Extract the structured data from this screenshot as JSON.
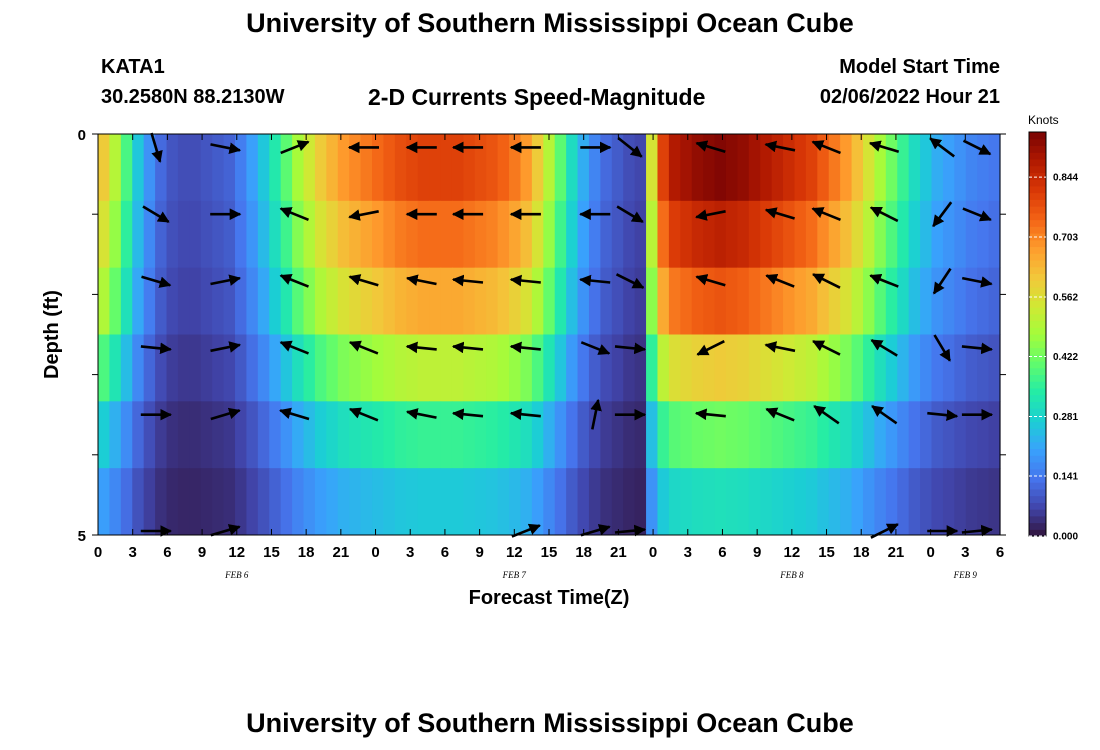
{
  "header": {
    "title": "University of Southern Mississippi Ocean Cube",
    "station": "KATA1",
    "coords": "30.2580N  88.2130W",
    "subtitle": "2-D Currents Speed-Magnitude",
    "start_label": "Model Start Time",
    "start_value": "02/06/2022 Hour 21"
  },
  "footer": {
    "title": "University of Southern Mississippi Ocean Cube"
  },
  "chart_data": {
    "type": "heatmap",
    "title": "2-D Currents Speed-Magnitude",
    "xlabel": "Forecast Time(Z)",
    "ylabel": "Depth (ft)",
    "x_tick_labels": [
      "0",
      "3",
      "6",
      "9",
      "12",
      "15",
      "18",
      "21",
      "0",
      "3",
      "6",
      "9",
      "12",
      "15",
      "18",
      "21",
      "0",
      "3",
      "6",
      "9",
      "12",
      "15",
      "18",
      "21",
      "0",
      "3",
      "6"
    ],
    "date_labels": [
      {
        "label": "FEB 6",
        "tick_index": 4
      },
      {
        "label": "FEB 7",
        "tick_index": 12
      },
      {
        "label": "FEB 8",
        "tick_index": 20
      },
      {
        "label": "FEB 9",
        "tick_index": 25
      }
    ],
    "y_tick_labels": [
      "0",
      "",
      "",
      "",
      "",
      "5"
    ],
    "ylim": [
      0,
      5
    ],
    "colorbar": {
      "label": "Knots",
      "ticks": [
        "0.000",
        "0.141",
        "0.281",
        "0.422",
        "0.562",
        "0.703",
        "0.844"
      ],
      "tick_values": [
        0.0,
        0.141,
        0.281,
        0.422,
        0.562,
        0.703,
        0.844
      ],
      "range": [
        0,
        0.95
      ],
      "colors": [
        "#30123b",
        "#4145ab",
        "#4675ed",
        "#39a2fc",
        "#1bcfd4",
        "#24eca6",
        "#61fc6c",
        "#a4fc3b",
        "#d1e834",
        "#f3c63a",
        "#fe9b2d",
        "#f36315",
        "#d93806",
        "#b11901",
        "#7a0403"
      ]
    },
    "depth_layers": [
      "0",
      "1",
      "2",
      "3",
      "4",
      "5"
    ],
    "col_times_hours": [
      0,
      1,
      2,
      3,
      4,
      5,
      6,
      7,
      8,
      9,
      10,
      11,
      12,
      13,
      14,
      15,
      16,
      17,
      18,
      19,
      20,
      21,
      22,
      23,
      24,
      25,
      26,
      27,
      28,
      29,
      30,
      31,
      32,
      33,
      34,
      35,
      36,
      37,
      38,
      39,
      40,
      41,
      42,
      43,
      44,
      45,
      46,
      47,
      48,
      49,
      50,
      51,
      52,
      53,
      54,
      55,
      56,
      57,
      58,
      59,
      60,
      61,
      62,
      63,
      64,
      65,
      66,
      67,
      68,
      69,
      70,
      71,
      72,
      73,
      74,
      75,
      76,
      77,
      78
    ],
    "speed_profile": [
      0.6,
      0.5,
      0.38,
      0.26,
      0.18,
      0.12,
      0.09,
      0.08,
      0.08,
      0.09,
      0.1,
      0.11,
      0.15,
      0.2,
      0.26,
      0.33,
      0.4,
      0.48,
      0.54,
      0.6,
      0.64,
      0.68,
      0.7,
      0.72,
      0.74,
      0.76,
      0.78,
      0.79,
      0.8,
      0.8,
      0.8,
      0.8,
      0.79,
      0.78,
      0.77,
      0.75,
      0.72,
      0.68,
      0.6,
      0.5,
      0.4,
      0.3,
      0.22,
      0.16,
      0.12,
      0.1,
      0.08,
      0.07,
      0.55,
      0.8,
      0.88,
      0.9,
      0.92,
      0.93,
      0.94,
      0.93,
      0.92,
      0.9,
      0.88,
      0.86,
      0.84,
      0.82,
      0.8,
      0.76,
      0.72,
      0.68,
      0.62,
      0.55,
      0.48,
      0.42,
      0.36,
      0.3,
      0.26,
      0.22,
      0.2,
      0.18,
      0.16,
      0.15,
      0.14
    ],
    "layer_factor": [
      1.0,
      0.92,
      0.82,
      0.64,
      0.45,
      0.33
    ],
    "arrows": [
      {
        "t": 5,
        "layer": 0,
        "dx": 0.3,
        "dy": 1
      },
      {
        "t": 11,
        "layer": 0,
        "dx": 1,
        "dy": 0.2
      },
      {
        "t": 17,
        "layer": 0,
        "dx": 1,
        "dy": -0.4
      },
      {
        "t": 23,
        "layer": 0,
        "dx": -1,
        "dy": 0
      },
      {
        "t": 28,
        "layer": 0,
        "dx": -1,
        "dy": 0
      },
      {
        "t": 32,
        "layer": 0,
        "dx": -1,
        "dy": 0
      },
      {
        "t": 37,
        "layer": 0,
        "dx": -1,
        "dy": 0
      },
      {
        "t": 43,
        "layer": 0,
        "dx": 1,
        "dy": 0
      },
      {
        "t": 46,
        "layer": 0,
        "dx": 1,
        "dy": 0.8
      },
      {
        "t": 53,
        "layer": 0,
        "dx": -1,
        "dy": -0.3
      },
      {
        "t": 59,
        "layer": 0,
        "dx": -1,
        "dy": -0.2
      },
      {
        "t": 63,
        "layer": 0,
        "dx": -1,
        "dy": -0.4
      },
      {
        "t": 68,
        "layer": 0,
        "dx": -1,
        "dy": -0.3
      },
      {
        "t": 73,
        "layer": 0,
        "dx": -0.8,
        "dy": -0.6
      },
      {
        "t": 76,
        "layer": 0,
        "dx": 1,
        "dy": 0.5
      },
      {
        "t": 5,
        "layer": 1,
        "dx": 1,
        "dy": 0.6
      },
      {
        "t": 11,
        "layer": 1,
        "dx": 1,
        "dy": 0
      },
      {
        "t": 17,
        "layer": 1,
        "dx": -1,
        "dy": -0.4
      },
      {
        "t": 23,
        "layer": 1,
        "dx": -1,
        "dy": 0.2
      },
      {
        "t": 28,
        "layer": 1,
        "dx": -1,
        "dy": 0
      },
      {
        "t": 32,
        "layer": 1,
        "dx": -1,
        "dy": 0
      },
      {
        "t": 37,
        "layer": 1,
        "dx": -1,
        "dy": 0
      },
      {
        "t": 43,
        "layer": 1,
        "dx": -1,
        "dy": 0
      },
      {
        "t": 46,
        "layer": 1,
        "dx": 1,
        "dy": 0.6
      },
      {
        "t": 53,
        "layer": 1,
        "dx": -1,
        "dy": 0.2
      },
      {
        "t": 59,
        "layer": 1,
        "dx": -1,
        "dy": -0.3
      },
      {
        "t": 63,
        "layer": 1,
        "dx": -1,
        "dy": -0.4
      },
      {
        "t": 68,
        "layer": 1,
        "dx": -1,
        "dy": -0.5
      },
      {
        "t": 73,
        "layer": 1,
        "dx": -0.6,
        "dy": 0.8
      },
      {
        "t": 76,
        "layer": 1,
        "dx": 1,
        "dy": 0.4
      },
      {
        "t": 5,
        "layer": 2,
        "dx": 1,
        "dy": 0.3
      },
      {
        "t": 11,
        "layer": 2,
        "dx": 1,
        "dy": -0.2
      },
      {
        "t": 17,
        "layer": 2,
        "dx": -1,
        "dy": -0.4
      },
      {
        "t": 23,
        "layer": 2,
        "dx": -1,
        "dy": -0.3
      },
      {
        "t": 28,
        "layer": 2,
        "dx": -1,
        "dy": -0.2
      },
      {
        "t": 32,
        "layer": 2,
        "dx": -1,
        "dy": -0.1
      },
      {
        "t": 37,
        "layer": 2,
        "dx": -1,
        "dy": -0.1
      },
      {
        "t": 43,
        "layer": 2,
        "dx": -1,
        "dy": -0.1
      },
      {
        "t": 46,
        "layer": 2,
        "dx": 1,
        "dy": 0.5
      },
      {
        "t": 53,
        "layer": 2,
        "dx": -1,
        "dy": -0.3
      },
      {
        "t": 59,
        "layer": 2,
        "dx": -1,
        "dy": -0.4
      },
      {
        "t": 63,
        "layer": 2,
        "dx": -1,
        "dy": -0.5
      },
      {
        "t": 68,
        "layer": 2,
        "dx": -1,
        "dy": -0.4
      },
      {
        "t": 73,
        "layer": 2,
        "dx": -0.6,
        "dy": 0.9
      },
      {
        "t": 76,
        "layer": 2,
        "dx": 1,
        "dy": 0.2
      },
      {
        "t": 5,
        "layer": 3,
        "dx": 1,
        "dy": 0.1
      },
      {
        "t": 11,
        "layer": 3,
        "dx": 1,
        "dy": -0.2
      },
      {
        "t": 17,
        "layer": 3,
        "dx": -1,
        "dy": -0.4
      },
      {
        "t": 23,
        "layer": 3,
        "dx": -1,
        "dy": -0.4
      },
      {
        "t": 28,
        "layer": 3,
        "dx": -1,
        "dy": -0.1
      },
      {
        "t": 32,
        "layer": 3,
        "dx": -1,
        "dy": -0.1
      },
      {
        "t": 37,
        "layer": 3,
        "dx": -1,
        "dy": -0.1
      },
      {
        "t": 43,
        "layer": 3,
        "dx": 1,
        "dy": 0.4
      },
      {
        "t": 46,
        "layer": 3,
        "dx": 1,
        "dy": 0.1
      },
      {
        "t": 53,
        "layer": 3,
        "dx": -1,
        "dy": 0.5
      },
      {
        "t": 59,
        "layer": 3,
        "dx": -1,
        "dy": -0.2
      },
      {
        "t": 63,
        "layer": 3,
        "dx": -1,
        "dy": -0.5
      },
      {
        "t": 68,
        "layer": 3,
        "dx": -1,
        "dy": -0.6
      },
      {
        "t": 73,
        "layer": 3,
        "dx": 0.6,
        "dy": 1
      },
      {
        "t": 76,
        "layer": 3,
        "dx": 1,
        "dy": 0.1
      },
      {
        "t": 5,
        "layer": 4,
        "dx": 1,
        "dy": 0
      },
      {
        "t": 11,
        "layer": 4,
        "dx": 1,
        "dy": -0.3
      },
      {
        "t": 17,
        "layer": 4,
        "dx": -1,
        "dy": -0.3
      },
      {
        "t": 23,
        "layer": 4,
        "dx": -1,
        "dy": -0.4
      },
      {
        "t": 28,
        "layer": 4,
        "dx": -1,
        "dy": -0.2
      },
      {
        "t": 32,
        "layer": 4,
        "dx": -1,
        "dy": -0.1
      },
      {
        "t": 37,
        "layer": 4,
        "dx": -1,
        "dy": -0.1
      },
      {
        "t": 43,
        "layer": 4,
        "dx": 0.2,
        "dy": -1
      },
      {
        "t": 46,
        "layer": 4,
        "dx": 1,
        "dy": 0
      },
      {
        "t": 53,
        "layer": 4,
        "dx": -1,
        "dy": -0.1
      },
      {
        "t": 59,
        "layer": 4,
        "dx": -1,
        "dy": -0.4
      },
      {
        "t": 63,
        "layer": 4,
        "dx": -1,
        "dy": -0.7
      },
      {
        "t": 68,
        "layer": 4,
        "dx": -1,
        "dy": -0.7
      },
      {
        "t": 73,
        "layer": 4,
        "dx": 1,
        "dy": 0.1
      },
      {
        "t": 76,
        "layer": 4,
        "dx": 1,
        "dy": 0
      },
      {
        "t": 5,
        "layer": 5,
        "dx": 1,
        "dy": 0
      },
      {
        "t": 11,
        "layer": 5,
        "dx": 1,
        "dy": -0.3
      },
      {
        "t": 37,
        "layer": 5,
        "dx": 1,
        "dy": -0.4
      },
      {
        "t": 43,
        "layer": 5,
        "dx": 1,
        "dy": -0.3
      },
      {
        "t": 46,
        "layer": 5,
        "dx": 1,
        "dy": -0.1
      },
      {
        "t": 68,
        "layer": 5,
        "dx": 1,
        "dy": -0.5
      },
      {
        "t": 73,
        "layer": 5,
        "dx": 1,
        "dy": 0
      },
      {
        "t": 76,
        "layer": 5,
        "dx": 1,
        "dy": -0.1
      }
    ]
  }
}
